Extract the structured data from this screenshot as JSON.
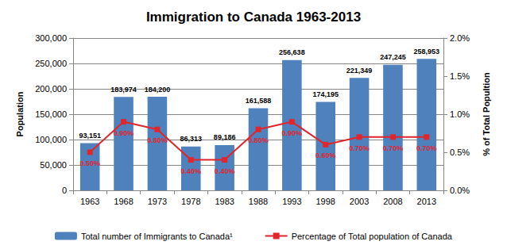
{
  "chart_data": {
    "type": "bar",
    "title": "Immigration to Canada 1963-2013",
    "x_label": null,
    "y_label": "Population",
    "y2_label": "% of Total Popultion",
    "categories": [
      "1963",
      "1968",
      "1973",
      "1978",
      "1983",
      "1988",
      "1993",
      "1998",
      "2003",
      "2008",
      "2013"
    ],
    "series": [
      {
        "name": "Total number of Immigrants to Canada¹",
        "type": "bar",
        "color": "#4f81bd",
        "values": [
          93151,
          183974,
          184200,
          86313,
          89186,
          161588,
          256638,
          174195,
          221349,
          247245,
          258953
        ],
        "value_labels": [
          "93,151",
          "183,974",
          "184,200",
          "86,313",
          "89,186",
          "161,588",
          "256,638",
          "174,195",
          "221,349",
          "247,245",
          "258,953"
        ]
      },
      {
        "name": "Percentage of Total population of Canada",
        "type": "line",
        "axis": "y2",
        "color": "#e0262c",
        "marker": "square",
        "values": [
          0.5,
          0.9,
          0.8,
          0.4,
          0.4,
          0.8,
          0.9,
          0.6,
          0.7,
          0.7,
          0.7
        ],
        "value_labels": [
          "0.50%",
          "0.90%",
          "0.80%",
          "0.40%",
          "0.40%",
          "0.80%",
          "0.90%",
          "0.60%",
          "0.70%",
          "0.70%",
          "0.70%"
        ]
      }
    ],
    "ylim": [
      0,
      300000
    ],
    "yticks": [
      0,
      {
        "value": 50000,
        "label": "50,000"
      },
      {
        "value": 100000,
        "label": "100,000"
      },
      {
        "value": 150000,
        "label": "150,000"
      },
      {
        "value": 200000,
        "label": "200,000"
      },
      {
        "value": 250000,
        "label": "250,000"
      },
      {
        "value": 300000,
        "label": "300,000"
      }
    ],
    "y2lim": [
      0,
      2
    ],
    "y2ticks": [
      {
        "value": 0,
        "label": "0.0%"
      },
      {
        "value": 0.5,
        "label": "0.5%"
      },
      {
        "value": 1,
        "label": "1.0%"
      },
      {
        "value": 1.5,
        "label": "1.5%"
      },
      {
        "value": 2,
        "label": "2.0%"
      }
    ],
    "grid": true,
    "legend": "bottom",
    "data_labels": true
  }
}
